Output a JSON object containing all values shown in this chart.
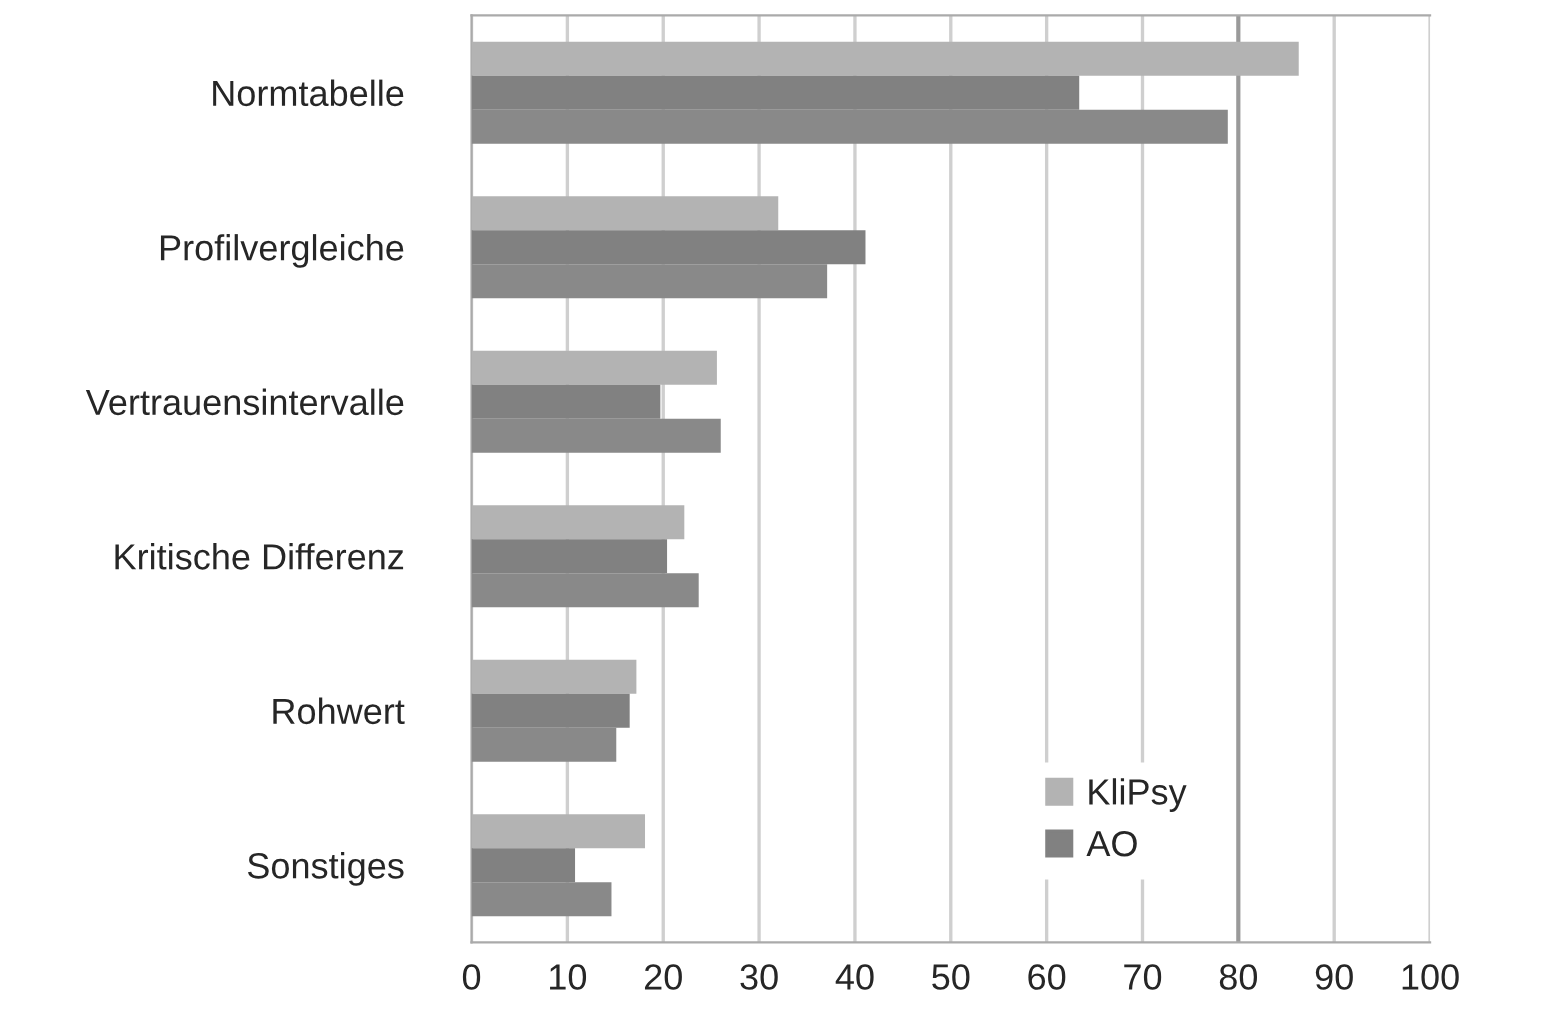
{
  "chart_data": {
    "type": "bar",
    "orientation": "horizontal",
    "categories": [
      "Normtabelle",
      "Profilvergleiche",
      "Vertrauensintervalle",
      "Kritische Differenz",
      "Rohwert",
      "Sonstiges"
    ],
    "series": [
      {
        "name": "KliPsy",
        "color": "#b3b3b3",
        "values": [
          86.3,
          32.0,
          25.6,
          22.2,
          17.2,
          18.1
        ]
      },
      {
        "name": "AO",
        "color": "#818181",
        "values": [
          63.4,
          41.1,
          19.7,
          20.4,
          16.5,
          10.8
        ]
      },
      {
        "color": "#898989",
        "values": [
          78.9,
          37.1,
          26.0,
          23.7,
          15.1,
          14.6
        ]
      }
    ],
    "xlim": [
      0,
      100
    ],
    "xticks": [
      0,
      10,
      20,
      30,
      40,
      50,
      60,
      70,
      80,
      90,
      100
    ],
    "ref_lines": [
      {
        "axis": "x",
        "value": 80,
        "color": "#9a9a9a"
      }
    ],
    "grid": "x",
    "legend": "bottom right"
  }
}
